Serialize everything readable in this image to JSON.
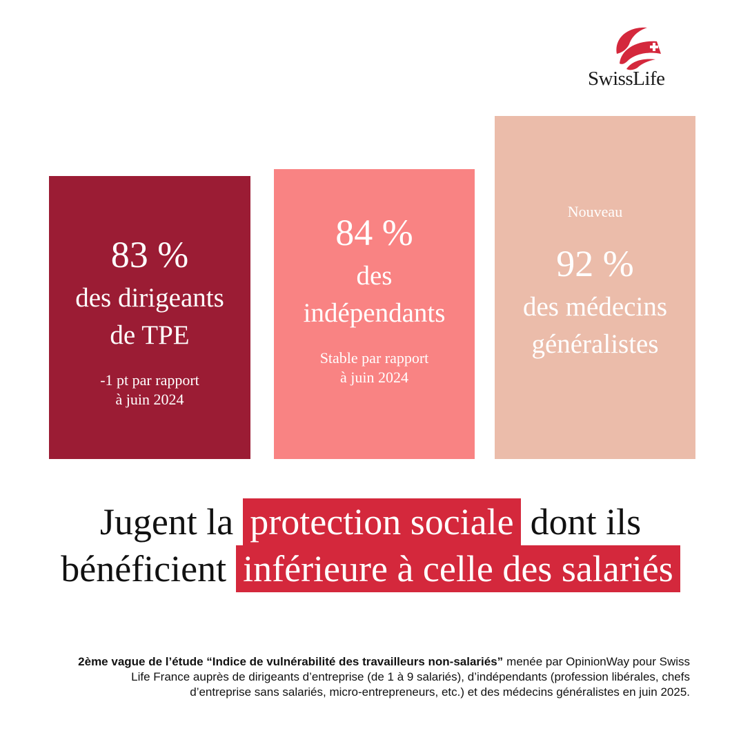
{
  "logo": {
    "text": "SwissLife"
  },
  "cards": [
    {
      "value": "83 %",
      "label_lines": [
        "des dirigeants",
        "de TPE"
      ],
      "note_lines": [
        "-1 pt par rapport",
        "à juin 2024"
      ],
      "color": "#9b1c34"
    },
    {
      "value": "84 %",
      "label_lines": [
        "des",
        "indépendants"
      ],
      "note_lines": [
        "Stable par rapport",
        "à juin 2024"
      ],
      "color": "#f98383"
    },
    {
      "tag": "Nouveau",
      "value": "92 %",
      "label_lines": [
        "des médecins",
        "généralistes"
      ],
      "color": "#ebbcaa"
    }
  ],
  "headline": {
    "highlight_color": "#d4283c",
    "lines": [
      [
        {
          "text": "Jugent la"
        },
        {
          "text": "protection sociale",
          "highlight": true
        },
        {
          "text": "dont ils"
        }
      ],
      [
        {
          "text": "bénéficient"
        },
        {
          "text": "inférieure à celle des salariés",
          "highlight": true
        }
      ]
    ]
  },
  "footnote": {
    "bold": "2ème vague de l’étude “Indice de vulnérabilité des travailleurs non-salariés”",
    "text": "menée par OpinionWay pour Swiss Life France auprès de dirigeants d’entreprise (de 1 à 9 salariés), d’indépendants (profession libérales, chefs d’entreprise sans salariés, micro-entrepreneurs, etc.) et des médecins généralistes en juin 2025."
  }
}
